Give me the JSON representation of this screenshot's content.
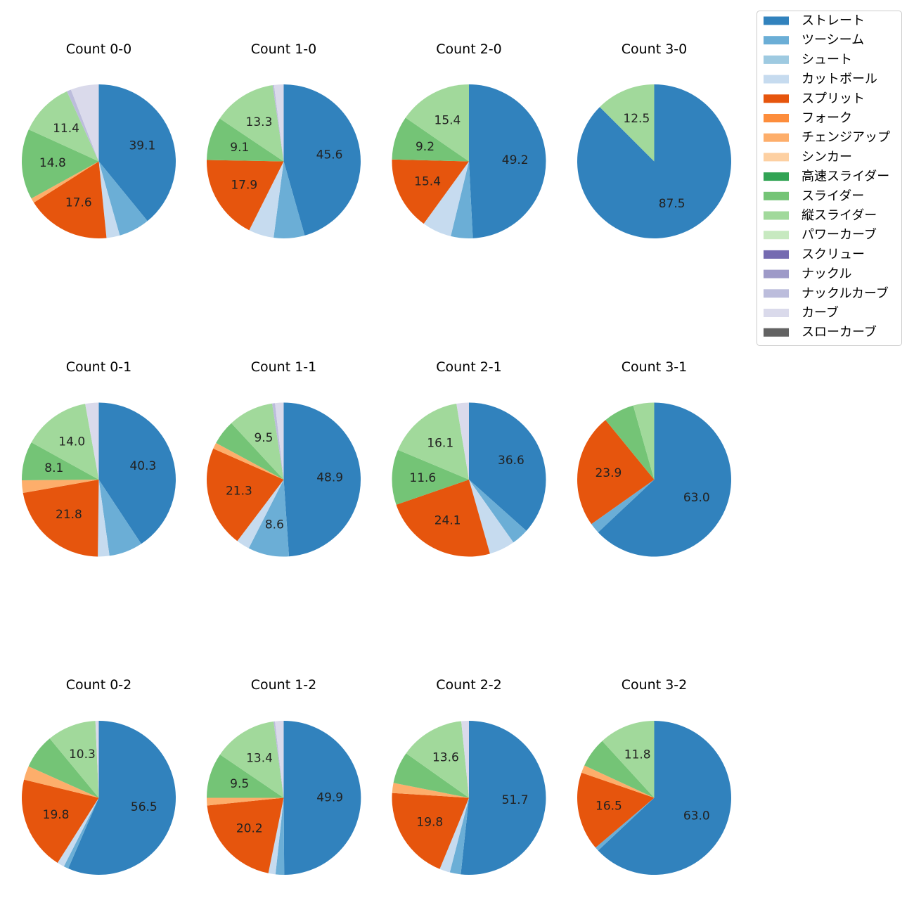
{
  "legend": {
    "items": [
      {
        "name": "ストレート",
        "color": "#3182bd"
      },
      {
        "name": "ツーシーム",
        "color": "#6baed6"
      },
      {
        "name": "シュート",
        "color": "#9ecae1"
      },
      {
        "name": "カットボール",
        "color": "#c6dbef"
      },
      {
        "name": "スプリット",
        "color": "#e6550d"
      },
      {
        "name": "フォーク",
        "color": "#fd8d3c"
      },
      {
        "name": "チェンジアップ",
        "color": "#fdae6b"
      },
      {
        "name": "シンカー",
        "color": "#fdd0a2"
      },
      {
        "name": "高速スライダー",
        "color": "#31a354"
      },
      {
        "name": "スライダー",
        "color": "#74c476"
      },
      {
        "name": "縦スライダー",
        "color": "#a1d99b"
      },
      {
        "name": "パワーカーブ",
        "color": "#c7e9c0"
      },
      {
        "name": "スクリュー",
        "color": "#756bb1"
      },
      {
        "name": "ナックル",
        "color": "#9e9ac8"
      },
      {
        "name": "ナックルカーブ",
        "color": "#bcbddc"
      },
      {
        "name": "カーブ",
        "color": "#dadaeb"
      },
      {
        "name": "スローカーブ",
        "color": "#636363"
      }
    ]
  },
  "chart_data": [
    {
      "type": "pie",
      "title": "Count 0-0",
      "start_angle": 90,
      "direction": "clockwise",
      "slices": [
        {
          "category": "ストレート",
          "value": 39.1,
          "label": "39.1"
        },
        {
          "category": "ツーシーム",
          "value": 6.5
        },
        {
          "category": "カットボール",
          "value": 2.8
        },
        {
          "category": "スプリット",
          "value": 17.6,
          "label": "17.6"
        },
        {
          "category": "チェンジアップ",
          "value": 1.0
        },
        {
          "category": "スライダー",
          "value": 14.8,
          "label": "14.8"
        },
        {
          "category": "縦スライダー",
          "value": 11.4,
          "label": "11.4"
        },
        {
          "category": "ナックルカーブ",
          "value": 0.9
        },
        {
          "category": "カーブ",
          "value": 5.9
        }
      ]
    },
    {
      "type": "pie",
      "title": "Count 1-0",
      "start_angle": 90,
      "direction": "clockwise",
      "slices": [
        {
          "category": "ストレート",
          "value": 45.6,
          "label": "45.6"
        },
        {
          "category": "ツーシーム",
          "value": 6.5
        },
        {
          "category": "カットボール",
          "value": 5.3
        },
        {
          "category": "スプリット",
          "value": 17.9,
          "label": "17.9"
        },
        {
          "category": "スライダー",
          "value": 9.1,
          "label": "9.1"
        },
        {
          "category": "縦スライダー",
          "value": 13.3,
          "label": "13.3"
        },
        {
          "category": "ナックルカーブ",
          "value": 0.3
        },
        {
          "category": "カーブ",
          "value": 2.0
        }
      ]
    },
    {
      "type": "pie",
      "title": "Count 2-0",
      "start_angle": 90,
      "direction": "clockwise",
      "slices": [
        {
          "category": "ストレート",
          "value": 49.2,
          "label": "49.2"
        },
        {
          "category": "ツーシーム",
          "value": 4.6
        },
        {
          "category": "カットボール",
          "value": 6.2
        },
        {
          "category": "スプリット",
          "value": 15.4,
          "label": "15.4"
        },
        {
          "category": "スライダー",
          "value": 9.2,
          "label": "9.2"
        },
        {
          "category": "縦スライダー",
          "value": 15.4,
          "label": "15.4"
        }
      ]
    },
    {
      "type": "pie",
      "title": "Count 3-0",
      "start_angle": 90,
      "direction": "clockwise",
      "slices": [
        {
          "category": "ストレート",
          "value": 87.5,
          "label": "87.5"
        },
        {
          "category": "縦スライダー",
          "value": 12.5,
          "label": "12.5"
        }
      ]
    },
    {
      "type": "pie",
      "title": "Count 0-1",
      "start_angle": 90,
      "direction": "clockwise",
      "slices": [
        {
          "category": "ストレート",
          "value": 40.3,
          "label": "40.3"
        },
        {
          "category": "ツーシーム",
          "value": 7.0
        },
        {
          "category": "カットボール",
          "value": 2.4
        },
        {
          "category": "スプリット",
          "value": 21.8,
          "label": "21.8"
        },
        {
          "category": "チェンジアップ",
          "value": 2.6
        },
        {
          "category": "スライダー",
          "value": 8.1,
          "label": "8.1"
        },
        {
          "category": "縦スライダー",
          "value": 14.0,
          "label": "14.0"
        },
        {
          "category": "カーブ",
          "value": 2.8
        }
      ]
    },
    {
      "type": "pie",
      "title": "Count 1-1",
      "start_angle": 90,
      "direction": "clockwise",
      "slices": [
        {
          "category": "ストレート",
          "value": 48.9,
          "label": "48.9"
        },
        {
          "category": "ツーシーム",
          "value": 8.6,
          "label": "8.6"
        },
        {
          "category": "カットボール",
          "value": 2.8
        },
        {
          "category": "スプリット",
          "value": 21.3,
          "label": "21.3"
        },
        {
          "category": "チェンジアップ",
          "value": 1.3
        },
        {
          "category": "スライダー",
          "value": 5.2
        },
        {
          "category": "縦スライダー",
          "value": 9.5,
          "label": "9.5"
        },
        {
          "category": "ナックルカーブ",
          "value": 0.6
        },
        {
          "category": "カーブ",
          "value": 1.8
        }
      ]
    },
    {
      "type": "pie",
      "title": "Count 2-1",
      "start_angle": 90,
      "direction": "clockwise",
      "slices": [
        {
          "category": "ストレート",
          "value": 36.6,
          "label": "36.6"
        },
        {
          "category": "ツーシーム",
          "value": 3.6
        },
        {
          "category": "カットボール",
          "value": 5.4
        },
        {
          "category": "スプリット",
          "value": 24.1,
          "label": "24.1"
        },
        {
          "category": "スライダー",
          "value": 11.6,
          "label": "11.6"
        },
        {
          "category": "縦スライダー",
          "value": 16.1,
          "label": "16.1"
        },
        {
          "category": "カーブ",
          "value": 2.6
        }
      ]
    },
    {
      "type": "pie",
      "title": "Count 3-1",
      "start_angle": 90,
      "direction": "clockwise",
      "slices": [
        {
          "category": "ストレート",
          "value": 63.0,
          "label": "63.0"
        },
        {
          "category": "ツーシーム",
          "value": 2.2
        },
        {
          "category": "スプリット",
          "value": 23.9,
          "label": "23.9"
        },
        {
          "category": "スライダー",
          "value": 6.5
        },
        {
          "category": "縦スライダー",
          "value": 4.4
        }
      ]
    },
    {
      "type": "pie",
      "title": "Count 0-2",
      "start_angle": 90,
      "direction": "clockwise",
      "slices": [
        {
          "category": "ストレート",
          "value": 56.5,
          "label": "56.5"
        },
        {
          "category": "ツーシーム",
          "value": 1.0
        },
        {
          "category": "カットボール",
          "value": 1.5
        },
        {
          "category": "スプリット",
          "value": 19.8,
          "label": "19.8"
        },
        {
          "category": "チェンジアップ",
          "value": 2.9
        },
        {
          "category": "スライダー",
          "value": 7.3
        },
        {
          "category": "縦スライダー",
          "value": 10.3,
          "label": "10.3"
        },
        {
          "category": "カーブ",
          "value": 0.7
        }
      ]
    },
    {
      "type": "pie",
      "title": "Count 1-2",
      "start_angle": 90,
      "direction": "clockwise",
      "slices": [
        {
          "category": "ストレート",
          "value": 49.9,
          "label": "49.9"
        },
        {
          "category": "ツーシーム",
          "value": 1.8
        },
        {
          "category": "カットボール",
          "value": 1.5
        },
        {
          "category": "スプリット",
          "value": 20.2,
          "label": "20.2"
        },
        {
          "category": "チェンジアップ",
          "value": 1.6
        },
        {
          "category": "スライダー",
          "value": 9.5,
          "label": "9.5"
        },
        {
          "category": "縦スライダー",
          "value": 13.4,
          "label": "13.4"
        },
        {
          "category": "ナックルカーブ",
          "value": 0.3
        },
        {
          "category": "カーブ",
          "value": 1.8
        }
      ]
    },
    {
      "type": "pie",
      "title": "Count 2-2",
      "start_angle": 90,
      "direction": "clockwise",
      "slices": [
        {
          "category": "ストレート",
          "value": 51.7,
          "label": "51.7"
        },
        {
          "category": "ツーシーム",
          "value": 2.3
        },
        {
          "category": "カットボール",
          "value": 2.2
        },
        {
          "category": "スプリット",
          "value": 19.8,
          "label": "19.8"
        },
        {
          "category": "チェンジアップ",
          "value": 2.1
        },
        {
          "category": "スライダー",
          "value": 6.7
        },
        {
          "category": "縦スライダー",
          "value": 13.6,
          "label": "13.6"
        },
        {
          "category": "カーブ",
          "value": 1.6
        }
      ]
    },
    {
      "type": "pie",
      "title": "Count 3-2",
      "start_angle": 90,
      "direction": "clockwise",
      "slices": [
        {
          "category": "ストレート",
          "value": 63.0,
          "label": "63.0"
        },
        {
          "category": "ツーシーム",
          "value": 0.8
        },
        {
          "category": "スプリット",
          "value": 16.5,
          "label": "16.5"
        },
        {
          "category": "チェンジアップ",
          "value": 1.6
        },
        {
          "category": "スライダー",
          "value": 6.3
        },
        {
          "category": "縦スライダー",
          "value": 11.8,
          "label": "11.8"
        }
      ]
    }
  ]
}
